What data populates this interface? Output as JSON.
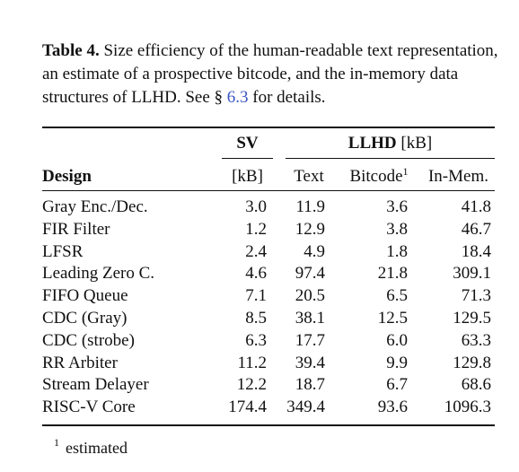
{
  "caption": {
    "label": "Table 4.",
    "text_before_ref": " Size efficiency of the human-readable text representation, an estimate of a prospective bitcode, and the in-memory data structures of LLHD. See § ",
    "ref": "6.3",
    "text_after_ref": " for details."
  },
  "headers": {
    "sv_group": "SV",
    "llhd_group": "LLHD [kB]",
    "design": "Design",
    "sv_unit": "[kB]",
    "text": "Text",
    "bitcode": "Bitcode",
    "bitcode_note": "1",
    "inmem": "In-Mem."
  },
  "rows": [
    {
      "design": "Gray Enc./Dec.",
      "sv": "3.0",
      "text": "11.9",
      "bitcode": "3.6",
      "inmem": "41.8"
    },
    {
      "design": "FIR Filter",
      "sv": "1.2",
      "text": "12.9",
      "bitcode": "3.8",
      "inmem": "46.7"
    },
    {
      "design": "LFSR",
      "sv": "2.4",
      "text": "4.9",
      "bitcode": "1.8",
      "inmem": "18.4"
    },
    {
      "design": "Leading Zero C.",
      "sv": "4.6",
      "text": "97.4",
      "bitcode": "21.8",
      "inmem": "309.1"
    },
    {
      "design": "FIFO Queue",
      "sv": "7.1",
      "text": "20.5",
      "bitcode": "6.5",
      "inmem": "71.3"
    },
    {
      "design": "CDC (Gray)",
      "sv": "8.5",
      "text": "38.1",
      "bitcode": "12.5",
      "inmem": "129.5"
    },
    {
      "design": "CDC (strobe)",
      "sv": "6.3",
      "text": "17.7",
      "bitcode": "6.0",
      "inmem": "63.3"
    },
    {
      "design": "RR Arbiter",
      "sv": "11.2",
      "text": "39.4",
      "bitcode": "9.9",
      "inmem": "129.8"
    },
    {
      "design": "Stream Delayer",
      "sv": "12.2",
      "text": "18.7",
      "bitcode": "6.7",
      "inmem": "68.6"
    },
    {
      "design": "RISC-V Core",
      "sv": "174.4",
      "text": "349.4",
      "bitcode": "93.6",
      "inmem": "1096.3"
    }
  ],
  "footnote": {
    "mark": "1",
    "text": "estimated"
  }
}
